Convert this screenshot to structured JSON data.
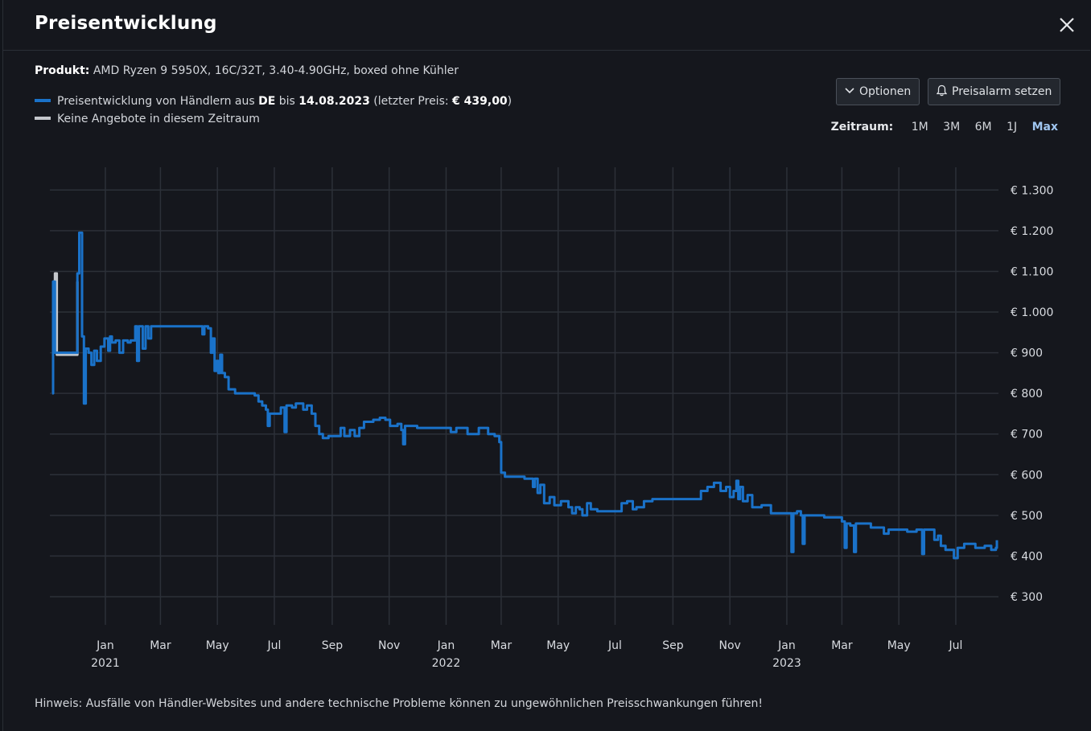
{
  "header": {
    "title": "Preisentwicklung"
  },
  "product": {
    "label": "Produkt:",
    "name": "AMD Ryzen 9 5950X, 16C/32T, 3.40-4.90GHz, boxed ohne Kühler"
  },
  "legend": {
    "line1_pre": "Preisentwicklung von Händlern aus ",
    "line1_country": "DE",
    "line1_mid": " bis ",
    "line1_date": "14.08.2023",
    "line1_post1": " (letzter Preis: ",
    "line1_price": "€ 439,00",
    "line1_post2": ")",
    "line2": "Keine Angebote in diesem Zeitraum"
  },
  "buttons": {
    "options": "Optionen",
    "alarm": "Preisalarm setzen"
  },
  "zeitraum": {
    "label": "Zeitraum:",
    "options": [
      "1M",
      "3M",
      "6M",
      "1J",
      "Max"
    ],
    "selected": "Max"
  },
  "hint": "Hinweis: Ausfälle von Händler-Websites und andere technische Probleme können zu ungewöhnlichen Preisschwankungen führen!",
  "colors": {
    "series": "#1a72c9",
    "gap": "#c4c7cc",
    "grid": "#2c3038",
    "background": "#15171d"
  },
  "chart_data": {
    "type": "line",
    "ylim": [
      300,
      1300
    ],
    "y_ticks": [
      300,
      400,
      500,
      600,
      700,
      800,
      900,
      1000,
      1100,
      1200,
      1300
    ],
    "y_tick_labels": [
      "€ 300",
      "€ 400",
      "€ 500",
      "€ 600",
      "€ 700",
      "€ 800",
      "€ 900",
      "€ 1.000",
      "€ 1.100",
      "€ 1.200",
      "€ 1.300"
    ],
    "x_ticks": [
      {
        "date": "2021-01-01",
        "month": "Jan",
        "year": "2021"
      },
      {
        "date": "2021-03-01",
        "month": "Mar",
        "year": ""
      },
      {
        "date": "2021-05-01",
        "month": "May",
        "year": ""
      },
      {
        "date": "2021-07-01",
        "month": "Jul",
        "year": ""
      },
      {
        "date": "2021-09-01",
        "month": "Sep",
        "year": ""
      },
      {
        "date": "2021-11-01",
        "month": "Nov",
        "year": ""
      },
      {
        "date": "2022-01-01",
        "month": "Jan",
        "year": "2022"
      },
      {
        "date": "2022-03-01",
        "month": "Mar",
        "year": ""
      },
      {
        "date": "2022-05-01",
        "month": "May",
        "year": ""
      },
      {
        "date": "2022-07-01",
        "month": "Jul",
        "year": ""
      },
      {
        "date": "2022-09-01",
        "month": "Sep",
        "year": ""
      },
      {
        "date": "2022-11-01",
        "month": "Nov",
        "year": ""
      },
      {
        "date": "2023-01-01",
        "month": "Jan",
        "year": "2023"
      },
      {
        "date": "2023-03-01",
        "month": "Mar",
        "year": ""
      },
      {
        "date": "2023-05-01",
        "month": "May",
        "year": ""
      },
      {
        "date": "2023-07-01",
        "month": "Jul",
        "year": ""
      }
    ],
    "xlim": [
      "2020-11-06",
      "2023-08-14"
    ],
    "gap_series": [
      [
        "2020-11-06",
        1075
      ],
      [
        "2020-11-08",
        1095
      ],
      [
        "2020-11-10",
        895
      ],
      [
        "2020-11-30",
        895
      ],
      [
        "2020-12-02",
        1075
      ]
    ],
    "series": [
      [
        "2020-11-05",
        800
      ],
      [
        "2020-11-06",
        1075
      ],
      [
        "2020-11-08",
        900
      ],
      [
        "2020-12-02",
        1095
      ],
      [
        "2020-12-04",
        1195
      ],
      [
        "2020-12-05",
        1195
      ],
      [
        "2020-12-07",
        940
      ],
      [
        "2020-12-09",
        775
      ],
      [
        "2020-12-11",
        910
      ],
      [
        "2020-12-14",
        900
      ],
      [
        "2020-12-17",
        870
      ],
      [
        "2020-12-20",
        905
      ],
      [
        "2020-12-23",
        880
      ],
      [
        "2020-12-27",
        915
      ],
      [
        "2020-12-31",
        935
      ],
      [
        "2021-01-04",
        905
      ],
      [
        "2021-01-06",
        940
      ],
      [
        "2021-01-08",
        925
      ],
      [
        "2021-01-12",
        930
      ],
      [
        "2021-01-16",
        900
      ],
      [
        "2021-01-20",
        930
      ],
      [
        "2021-01-25",
        925
      ],
      [
        "2021-01-28",
        930
      ],
      [
        "2021-02-02",
        965
      ],
      [
        "2021-02-04",
        880
      ],
      [
        "2021-02-06",
        965
      ],
      [
        "2021-02-10",
        910
      ],
      [
        "2021-02-13",
        965
      ],
      [
        "2021-02-16",
        935
      ],
      [
        "2021-02-19",
        965
      ],
      [
        "2021-03-01",
        965
      ],
      [
        "2021-04-01",
        965
      ],
      [
        "2021-04-13",
        965
      ],
      [
        "2021-04-15",
        945
      ],
      [
        "2021-04-17",
        965
      ],
      [
        "2021-04-21",
        960
      ],
      [
        "2021-04-24",
        900
      ],
      [
        "2021-04-26",
        935
      ],
      [
        "2021-04-28",
        855
      ],
      [
        "2021-04-30",
        880
      ],
      [
        "2021-05-02",
        850
      ],
      [
        "2021-05-04",
        895
      ],
      [
        "2021-05-06",
        850
      ],
      [
        "2021-05-09",
        840
      ],
      [
        "2021-05-13",
        810
      ],
      [
        "2021-05-20",
        800
      ],
      [
        "2021-06-01",
        800
      ],
      [
        "2021-06-10",
        795
      ],
      [
        "2021-06-14",
        780
      ],
      [
        "2021-06-18",
        770
      ],
      [
        "2021-06-22",
        760
      ],
      [
        "2021-06-24",
        720
      ],
      [
        "2021-06-26",
        750
      ],
      [
        "2021-07-04",
        750
      ],
      [
        "2021-07-08",
        765
      ],
      [
        "2021-07-10",
        765
      ],
      [
        "2021-07-12",
        705
      ],
      [
        "2021-07-14",
        770
      ],
      [
        "2021-07-20",
        765
      ],
      [
        "2021-07-24",
        775
      ],
      [
        "2021-08-01",
        760
      ],
      [
        "2021-08-05",
        770
      ],
      [
        "2021-08-10",
        750
      ],
      [
        "2021-08-14",
        720
      ],
      [
        "2021-08-18",
        700
      ],
      [
        "2021-08-22",
        690
      ],
      [
        "2021-08-28",
        695
      ],
      [
        "2021-09-05",
        695
      ],
      [
        "2021-09-10",
        715
      ],
      [
        "2021-09-14",
        695
      ],
      [
        "2021-09-20",
        710
      ],
      [
        "2021-09-25",
        695
      ],
      [
        "2021-09-30",
        715
      ],
      [
        "2021-10-05",
        730
      ],
      [
        "2021-10-15",
        735
      ],
      [
        "2021-10-22",
        740
      ],
      [
        "2021-10-28",
        735
      ],
      [
        "2021-11-02",
        720
      ],
      [
        "2021-11-10",
        725
      ],
      [
        "2021-11-14",
        710
      ],
      [
        "2021-11-16",
        675
      ],
      [
        "2021-11-18",
        720
      ],
      [
        "2021-12-01",
        715
      ],
      [
        "2021-12-20",
        715
      ],
      [
        "2022-01-06",
        705
      ],
      [
        "2022-01-12",
        715
      ],
      [
        "2022-01-20",
        715
      ],
      [
        "2022-01-24",
        700
      ],
      [
        "2022-02-01",
        700
      ],
      [
        "2022-02-05",
        715
      ],
      [
        "2022-02-15",
        700
      ],
      [
        "2022-02-22",
        695
      ],
      [
        "2022-02-27",
        680
      ],
      [
        "2022-03-01",
        605
      ],
      [
        "2022-03-05",
        595
      ],
      [
        "2022-03-15",
        595
      ],
      [
        "2022-03-26",
        590
      ],
      [
        "2022-04-01",
        590
      ],
      [
        "2022-04-04",
        570
      ],
      [
        "2022-04-06",
        590
      ],
      [
        "2022-04-09",
        555
      ],
      [
        "2022-04-12",
        575
      ],
      [
        "2022-04-16",
        530
      ],
      [
        "2022-04-22",
        545
      ],
      [
        "2022-04-27",
        525
      ],
      [
        "2022-05-04",
        535
      ],
      [
        "2022-05-12",
        520
      ],
      [
        "2022-05-16",
        505
      ],
      [
        "2022-05-20",
        520
      ],
      [
        "2022-05-24",
        515
      ],
      [
        "2022-05-27",
        500
      ],
      [
        "2022-06-01",
        530
      ],
      [
        "2022-06-05",
        515
      ],
      [
        "2022-06-12",
        510
      ],
      [
        "2022-06-25",
        510
      ],
      [
        "2022-07-04",
        510
      ],
      [
        "2022-07-08",
        530
      ],
      [
        "2022-07-14",
        535
      ],
      [
        "2022-07-20",
        515
      ],
      [
        "2022-07-24",
        520
      ],
      [
        "2022-08-01",
        535
      ],
      [
        "2022-08-10",
        540
      ],
      [
        "2022-09-01",
        540
      ],
      [
        "2022-09-25",
        540
      ],
      [
        "2022-10-01",
        560
      ],
      [
        "2022-10-08",
        570
      ],
      [
        "2022-10-15",
        580
      ],
      [
        "2022-10-22",
        560
      ],
      [
        "2022-10-28",
        570
      ],
      [
        "2022-11-01",
        545
      ],
      [
        "2022-11-05",
        560
      ],
      [
        "2022-11-08",
        585
      ],
      [
        "2022-11-10",
        540
      ],
      [
        "2022-11-12",
        570
      ],
      [
        "2022-11-15",
        535
      ],
      [
        "2022-11-20",
        550
      ],
      [
        "2022-11-25",
        520
      ],
      [
        "2022-12-05",
        525
      ],
      [
        "2022-12-15",
        505
      ],
      [
        "2022-12-28",
        505
      ],
      [
        "2023-01-04",
        505
      ],
      [
        "2023-01-06",
        410
      ],
      [
        "2023-01-08",
        505
      ],
      [
        "2023-01-12",
        510
      ],
      [
        "2023-01-16",
        500
      ],
      [
        "2023-01-18",
        430
      ],
      [
        "2023-01-20",
        500
      ],
      [
        "2023-02-10",
        495
      ],
      [
        "2023-03-01",
        485
      ],
      [
        "2023-03-04",
        420
      ],
      [
        "2023-03-06",
        480
      ],
      [
        "2023-03-10",
        475
      ],
      [
        "2023-03-14",
        410
      ],
      [
        "2023-03-16",
        480
      ],
      [
        "2023-04-01",
        470
      ],
      [
        "2023-04-15",
        455
      ],
      [
        "2023-04-20",
        465
      ],
      [
        "2023-05-01",
        465
      ],
      [
        "2023-05-10",
        460
      ],
      [
        "2023-05-20",
        465
      ],
      [
        "2023-05-26",
        405
      ],
      [
        "2023-05-28",
        465
      ],
      [
        "2023-06-05",
        465
      ],
      [
        "2023-06-08",
        440
      ],
      [
        "2023-06-12",
        450
      ],
      [
        "2023-06-15",
        425
      ],
      [
        "2023-06-20",
        415
      ],
      [
        "2023-06-25",
        415
      ],
      [
        "2023-06-29",
        395
      ],
      [
        "2023-07-03",
        420
      ],
      [
        "2023-07-10",
        430
      ],
      [
        "2023-07-18",
        430
      ],
      [
        "2023-07-22",
        420
      ],
      [
        "2023-08-01",
        425
      ],
      [
        "2023-08-08",
        415
      ],
      [
        "2023-08-13",
        420
      ],
      [
        "2023-08-14",
        439
      ]
    ]
  }
}
